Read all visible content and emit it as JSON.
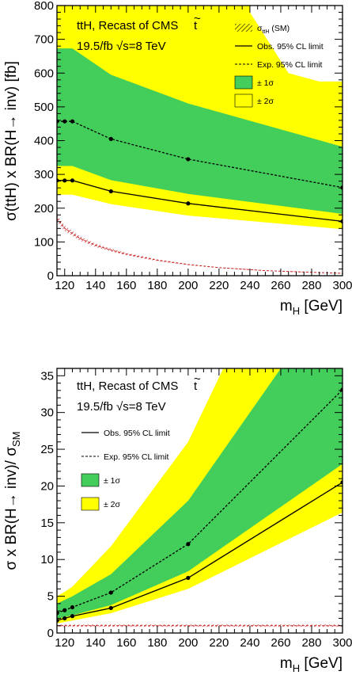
{
  "chart_data": [
    {
      "type": "line",
      "annotation_line1": "ttH, Recast of CMS",
      "annotation_tilde": "~",
      "annotation_t": "t",
      "annotation_line2": "19.5/fb √s=8 TeV",
      "ylabel": "σ(ttH) x BR(H→ inv) [fb]",
      "xlabel_main": "m",
      "xlabel_sub": "H",
      "xlabel_unit": " [GeV]",
      "xlim": [
        115,
        300
      ],
      "ylim": [
        0,
        800
      ],
      "x_ticks": [
        "120",
        "140",
        "160",
        "180",
        "200",
        "220",
        "240",
        "260",
        "280",
        "300"
      ],
      "x_tick_values": [
        120,
        140,
        160,
        180,
        200,
        220,
        240,
        260,
        280,
        300
      ],
      "y_ticks": [
        "0",
        "100",
        "200",
        "300",
        "400",
        "500",
        "600",
        "700",
        "800"
      ],
      "y_tick_values": [
        0,
        100,
        200,
        300,
        400,
        500,
        600,
        700,
        800
      ],
      "legend": {
        "sm_sigma": "σ",
        "sm_sub": "ttH",
        "sm_suffix": " (SM)",
        "obs": "Obs. 95% CL limit",
        "exp": "Exp. 95% CL limit",
        "band1": "± 1σ",
        "band2": "± 2σ"
      },
      "x": [
        115,
        120,
        125,
        150,
        200,
        300
      ],
      "observed": [
        282,
        282,
        282,
        250,
        214,
        161
      ],
      "expected": [
        457,
        457,
        457,
        405,
        345,
        261
      ],
      "band_1sigma_upper": [
        673,
        673,
        673,
        595,
        510,
        382
      ],
      "band_1sigma_lower": [
        325,
        325,
        325,
        283,
        242,
        183
      ],
      "band_2sigma_upper": [
        800,
        800,
        800,
        800,
        800,
        800
      ],
      "band_2sigma_lower": [
        240,
        240,
        240,
        212,
        178,
        138
      ],
      "band_2sigma_upper_right": [
        [
          240,
          780
        ],
        [
          265,
          600
        ],
        [
          285,
          575
        ],
        [
          300,
          575
        ]
      ],
      "sm_x": [
        115,
        120,
        130,
        140,
        150,
        160,
        180,
        200,
        220,
        250,
        280,
        300
      ],
      "sm_xsec": [
        170,
        140,
        110,
        90,
        76,
        64,
        46,
        33,
        24,
        15,
        10,
        7
      ],
      "colors": {
        "band1": "#43cd5a",
        "band2": "#ffff00",
        "sm": "#cc2222",
        "line": "#000000"
      }
    },
    {
      "type": "line",
      "annotation_line1": "ttH, Recast of CMS",
      "annotation_tilde": "~",
      "annotation_t": "t",
      "annotation_line2": "19.5/fb √s=8 TeV",
      "ylabel_main": "σ x BR(H→ inv)/ σ",
      "ylabel_sub": "SM",
      "xlabel_main": "m",
      "xlabel_sub": "H",
      "xlabel_unit": " [GeV]",
      "xlim": [
        115,
        300
      ],
      "ylim": [
        0,
        36
      ],
      "x_ticks": [
        "120",
        "140",
        "160",
        "180",
        "200",
        "220",
        "240",
        "260",
        "280",
        "300"
      ],
      "x_tick_values": [
        120,
        140,
        160,
        180,
        200,
        220,
        240,
        260,
        280,
        300
      ],
      "y_ticks": [
        "0",
        "5",
        "10",
        "15",
        "20",
        "25",
        "30",
        "35"
      ],
      "y_tick_values": [
        0,
        5,
        10,
        15,
        20,
        25,
        30,
        35
      ],
      "legend": {
        "obs": "Obs. 95% CL limit",
        "exp": "Exp. 95% CL limit",
        "band1": "± 1σ",
        "band2": "± 2σ"
      },
      "x": [
        115,
        120,
        125,
        150,
        200,
        300
      ],
      "observed": [
        1.7,
        2.0,
        2.3,
        3.4,
        7.5,
        20.5
      ],
      "expected": [
        2.7,
        3.1,
        3.5,
        5.5,
        12.1,
        33.1
      ],
      "band_1sigma_upper": [
        4.0,
        4.5,
        5.0,
        8.0,
        18.0,
        48.0
      ],
      "band_1sigma_lower": [
        1.9,
        2.2,
        2.4,
        3.8,
        8.4,
        23.0
      ],
      "band_2sigma_upper": [
        5.0,
        5.6,
        6.3,
        11.8,
        26.0,
        70.0
      ],
      "band_2sigma_lower": [
        1.3,
        1.5,
        1.7,
        2.7,
        6.0,
        16.4
      ],
      "sm_ratio": 1,
      "colors": {
        "band1": "#43cd5a",
        "band2": "#ffff00",
        "sm": "#cc2222",
        "line": "#000000"
      }
    }
  ]
}
